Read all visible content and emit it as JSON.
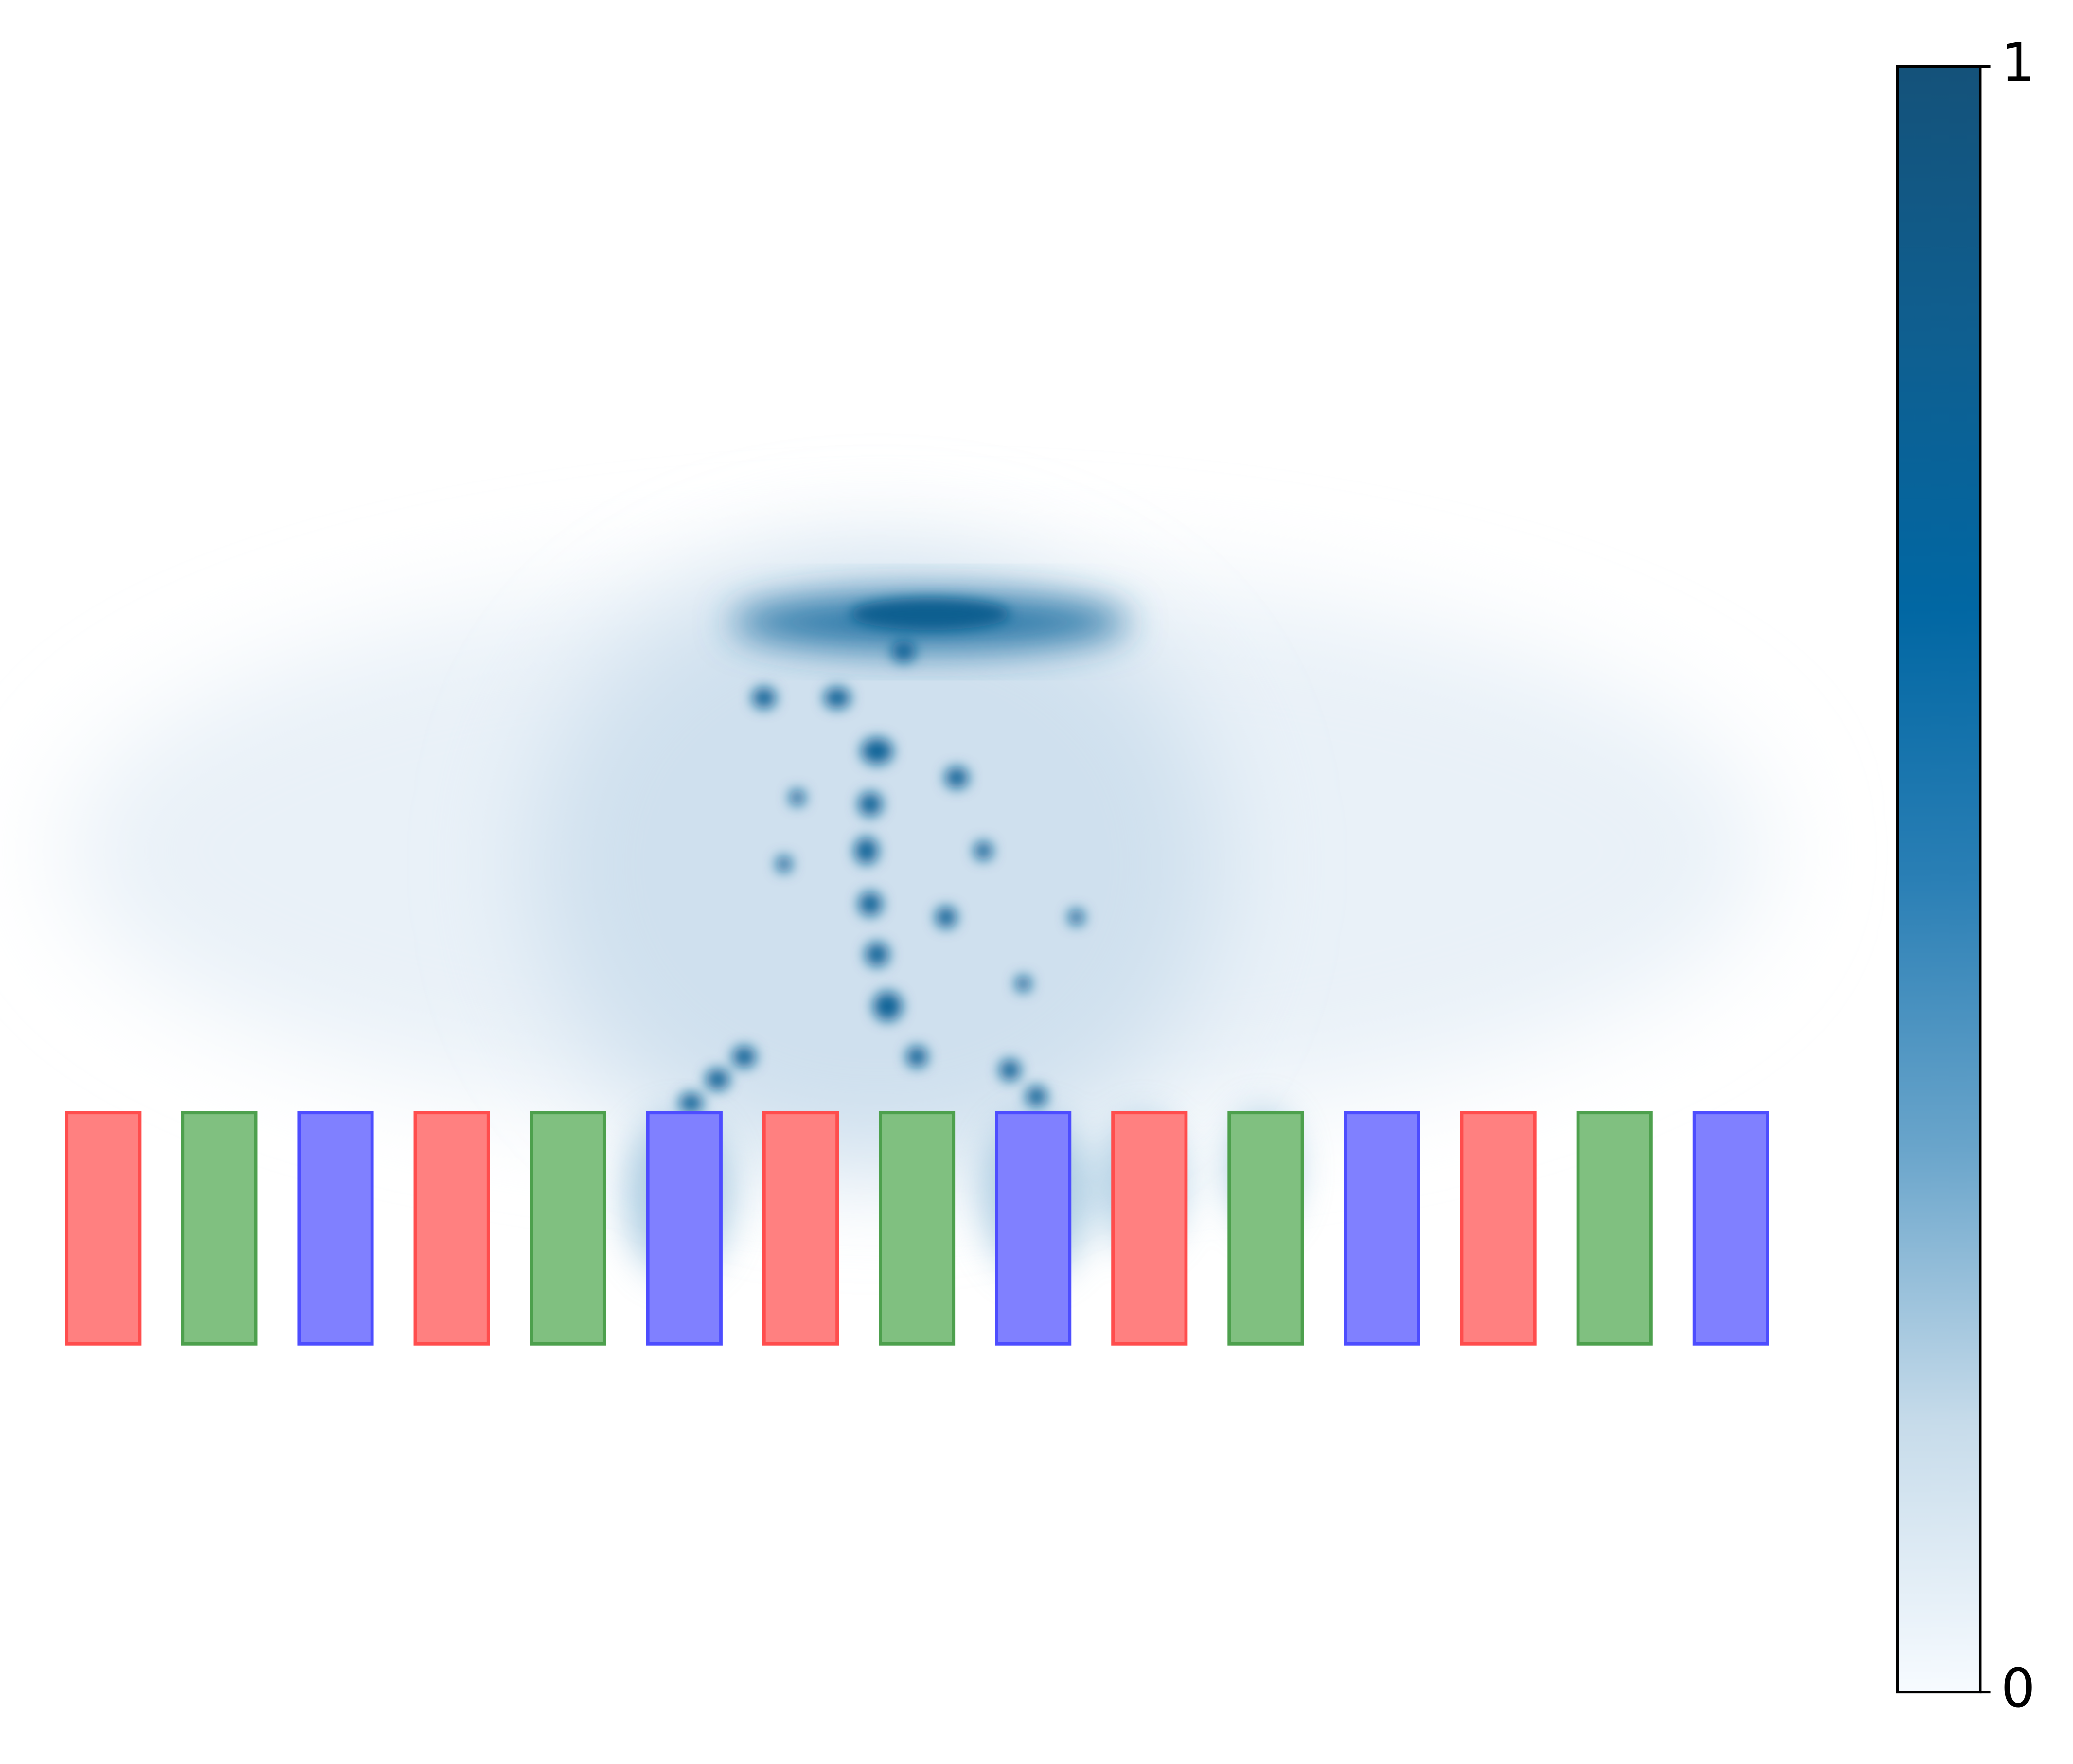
{
  "chart_data": {
    "type": "field",
    "clim": [
      0,
      1
    ],
    "cticks": [
      0,
      1
    ],
    "colormap": [
      "#f7fbff",
      "#c6dbea",
      "#6aa5cb",
      "#2a7fb5",
      "#0167a3",
      "#0f5f90",
      "#14527a"
    ]
  }
}
